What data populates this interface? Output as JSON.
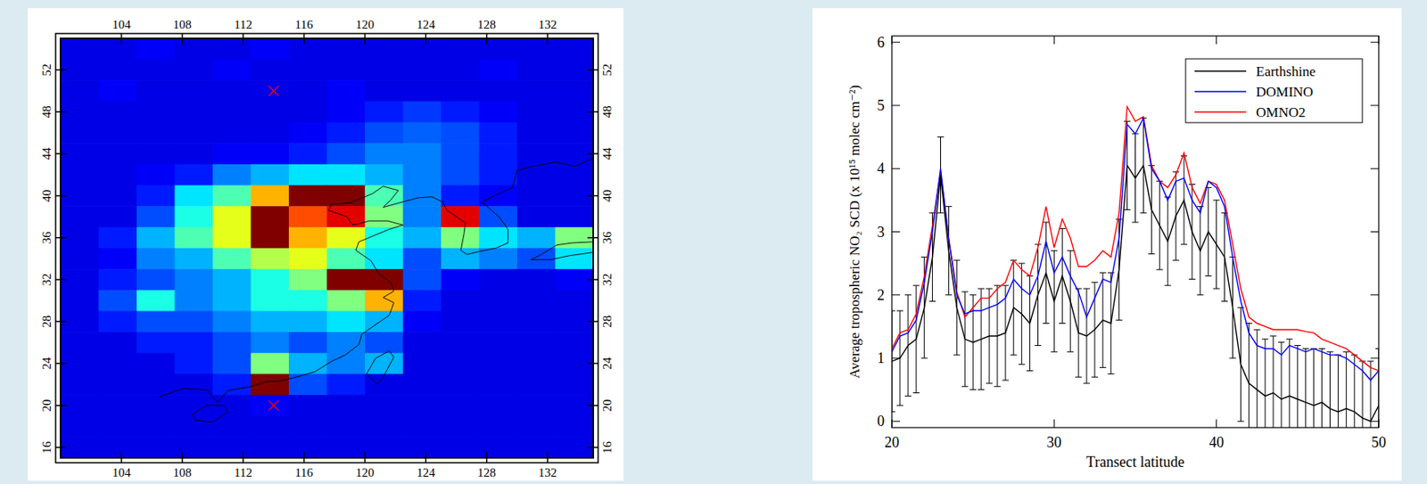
{
  "chart_data": [
    {
      "type": "heatmap",
      "xlim": [
        100,
        135
      ],
      "ylim": [
        15,
        55
      ],
      "xticks": [
        104,
        108,
        112,
        116,
        120,
        124,
        128,
        132
      ],
      "yticks": [
        16,
        20,
        24,
        28,
        32,
        36,
        40,
        44,
        48,
        52
      ],
      "x_edges": [
        100,
        102.5,
        105,
        107.5,
        110,
        112.5,
        115,
        117.5,
        120,
        122.5,
        125,
        127.5,
        130,
        132.5,
        135
      ],
      "y_edges": [
        55,
        53,
        51,
        49,
        47,
        45,
        43,
        41,
        39,
        37,
        35,
        33,
        31,
        29,
        27,
        25,
        23,
        21,
        19,
        17,
        15
      ],
      "color_range": [
        0,
        10
      ],
      "values": [
        [
          1,
          1,
          1.2,
          1,
          1,
          1.2,
          1,
          1,
          1,
          1,
          1,
          1,
          1,
          1
        ],
        [
          1,
          1,
          1,
          1,
          1.2,
          1,
          1,
          1,
          1,
          1,
          1,
          1.2,
          1,
          1
        ],
        [
          1,
          1.2,
          1,
          1,
          1,
          1,
          1,
          1.2,
          1,
          1,
          1,
          1,
          1,
          1
        ],
        [
          1,
          1,
          1,
          1,
          1,
          1,
          1,
          1.2,
          1.5,
          1.8,
          1.5,
          1.2,
          1,
          1
        ],
        [
          1,
          1,
          1,
          1,
          1,
          1,
          1.2,
          1.5,
          2,
          2.2,
          2,
          1.5,
          1,
          1
        ],
        [
          1,
          1,
          1,
          1,
          1.2,
          1.2,
          1.5,
          2,
          2.5,
          2.5,
          2,
          1.5,
          1,
          1
        ],
        [
          1,
          1,
          1.2,
          1.5,
          2.5,
          3,
          3.5,
          3.5,
          3,
          2.5,
          2,
          1.5,
          1,
          1
        ],
        [
          1,
          1,
          1.5,
          3.5,
          4.5,
          7,
          10,
          10,
          4.5,
          2.5,
          1.5,
          1.2,
          1,
          1
        ],
        [
          1,
          1,
          2,
          4,
          6,
          10,
          8,
          9,
          5,
          2.5,
          9,
          2,
          1,
          1
        ],
        [
          1,
          1.5,
          3,
          4.5,
          6,
          10,
          7,
          6,
          4,
          3,
          5,
          3.5,
          3,
          5
        ],
        [
          1,
          1.2,
          2.5,
          3,
          4.5,
          5.5,
          6,
          4.5,
          3.5,
          2,
          3,
          2.5,
          2,
          3.5
        ],
        [
          1,
          1.5,
          2,
          2.5,
          3,
          4,
          5,
          10,
          10,
          2,
          1.2,
          1,
          1,
          1.2
        ],
        [
          1,
          2,
          4,
          2.5,
          3,
          4,
          4,
          5,
          7,
          1.5,
          1,
          1,
          1,
          1
        ],
        [
          1,
          1.5,
          2,
          2,
          2.5,
          3,
          3,
          3.5,
          3,
          1.2,
          1,
          1,
          1,
          1
        ],
        [
          1,
          1,
          1.5,
          1.5,
          2,
          2.5,
          2,
          2.5,
          2,
          1,
          1,
          1,
          1,
          1
        ],
        [
          1,
          1,
          1,
          1.5,
          2,
          5,
          3,
          2.5,
          3,
          1,
          1,
          1,
          1,
          1
        ],
        [
          1,
          1,
          1,
          1,
          1.5,
          10,
          2,
          1.5,
          1,
          1,
          1,
          1,
          1,
          1
        ],
        [
          1,
          1,
          1,
          1,
          1,
          1.2,
          1,
          1,
          1,
          1,
          1,
          1,
          1,
          1
        ],
        [
          1,
          1,
          1,
          1,
          1,
          1,
          1,
          1,
          1,
          1,
          1,
          1,
          1,
          1
        ],
        [
          1,
          1,
          1,
          1,
          1,
          1,
          1,
          1,
          1,
          1,
          1,
          1,
          1,
          1
        ]
      ],
      "series": [
        {
          "type": "scatter",
          "marker": "x",
          "color": "#ff0000",
          "x": [
            114,
            114
          ],
          "values": [
            50,
            20
          ]
        }
      ]
    },
    {
      "type": "line",
      "xlabel": "Transect latitude",
      "ylabel": "Average tropospheric NO₂ SCD (x 10¹⁵ molec cm⁻²)",
      "xlim": [
        20,
        50
      ],
      "ylim": [
        -0.1,
        6.1
      ],
      "xticks": [
        20,
        30,
        40,
        50
      ],
      "yticks": [
        0,
        1,
        2,
        3,
        4,
        5,
        6
      ],
      "legend": "upper right",
      "x": [
        20,
        20.5,
        21,
        21.5,
        22,
        22.5,
        23,
        23.5,
        24,
        24.5,
        25,
        25.5,
        26,
        26.5,
        27,
        27.5,
        28,
        28.5,
        29,
        29.5,
        30,
        30.5,
        31,
        31.5,
        32,
        32.5,
        33,
        33.5,
        34,
        34.5,
        35,
        35.5,
        36,
        36.5,
        37,
        37.5,
        38,
        38.5,
        39,
        39.5,
        40,
        40.5,
        41,
        41.5,
        42,
        42.5,
        43,
        43.5,
        44,
        44.5,
        45,
        45.5,
        46,
        46.5,
        47,
        47.5,
        48,
        48.5,
        49,
        49.5,
        50
      ],
      "series": [
        {
          "name": "Earthshine",
          "color": "#000000",
          "values": [
            0.95,
            1.0,
            1.2,
            1.3,
            1.8,
            2.6,
            3.9,
            2.7,
            1.8,
            1.3,
            1.25,
            1.3,
            1.35,
            1.35,
            1.4,
            1.8,
            1.7,
            1.55,
            2.0,
            2.35,
            1.9,
            2.3,
            1.9,
            1.4,
            1.35,
            1.45,
            1.6,
            1.55,
            2.4,
            4.05,
            3.85,
            4.05,
            3.35,
            3.1,
            2.85,
            3.25,
            3.5,
            3.0,
            2.7,
            3.0,
            2.8,
            2.6,
            1.8,
            0.9,
            0.6,
            0.5,
            0.4,
            0.45,
            0.35,
            0.4,
            0.35,
            0.3,
            0.25,
            0.3,
            0.2,
            0.15,
            0.2,
            0.15,
            0.05,
            0.0,
            0.25
          ],
          "errors": [
            0.8,
            0.75,
            0.8,
            0.85,
            0.8,
            0.7,
            0.6,
            0.7,
            0.75,
            0.75,
            0.75,
            0.8,
            0.75,
            0.8,
            0.75,
            0.75,
            0.8,
            0.75,
            0.8,
            0.8,
            0.8,
            0.75,
            0.8,
            0.7,
            0.75,
            0.75,
            0.75,
            0.8,
            0.8,
            0.7,
            0.7,
            0.75,
            0.7,
            0.7,
            0.7,
            0.7,
            0.7,
            0.75,
            0.7,
            0.7,
            0.7,
            0.7,
            0.8,
            0.9,
            0.95,
            0.95,
            0.9,
            0.9,
            0.9,
            0.9,
            0.85,
            0.85,
            0.9,
            0.85,
            0.9,
            0.9,
            0.9,
            0.9,
            0.9,
            0.95,
            0.9
          ]
        },
        {
          "name": "DOMINO",
          "color": "#0000ff",
          "values": [
            1.1,
            1.35,
            1.4,
            1.6,
            2.2,
            3.0,
            4.0,
            2.9,
            2.0,
            1.7,
            1.75,
            1.75,
            1.8,
            1.85,
            1.95,
            2.25,
            2.1,
            2.0,
            2.3,
            2.85,
            2.35,
            2.6,
            2.3,
            2.05,
            1.65,
            1.95,
            2.25,
            2.2,
            2.9,
            4.7,
            4.55,
            4.8,
            4.0,
            3.8,
            3.5,
            3.8,
            3.85,
            3.5,
            3.3,
            3.8,
            3.7,
            3.4,
            2.6,
            1.9,
            1.4,
            1.2,
            1.15,
            1.15,
            1.05,
            1.2,
            1.15,
            1.1,
            1.15,
            1.1,
            1.05,
            1.05,
            1.0,
            0.9,
            0.8,
            0.65,
            0.8
          ]
        },
        {
          "name": "OMNO2",
          "color": "#ff0000",
          "values": [
            1.15,
            1.4,
            1.45,
            1.7,
            2.3,
            3.1,
            3.95,
            2.9,
            2.05,
            1.65,
            1.8,
            1.95,
            1.95,
            2.1,
            2.2,
            2.55,
            2.4,
            2.3,
            2.75,
            3.4,
            2.75,
            3.2,
            2.9,
            2.45,
            2.45,
            2.55,
            2.7,
            2.6,
            3.3,
            4.98,
            4.75,
            4.82,
            4.05,
            3.8,
            3.7,
            3.9,
            4.25,
            3.7,
            3.45,
            3.8,
            3.75,
            3.5,
            2.8,
            2.1,
            1.65,
            1.55,
            1.5,
            1.45,
            1.45,
            1.45,
            1.45,
            1.42,
            1.4,
            1.3,
            1.25,
            1.2,
            1.15,
            1.05,
            0.95,
            0.85,
            0.8
          ]
        }
      ]
    }
  ]
}
